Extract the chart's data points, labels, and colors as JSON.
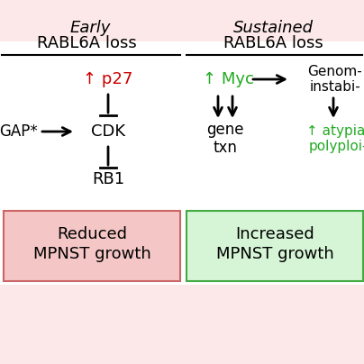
{
  "bg_color": "#fce8e8",
  "left_panel": {
    "title_line1": "Early",
    "title_line2": "RABL6A loss",
    "p27_color": "#cc0000",
    "outcome_text": "Reduced\nMPNST growth",
    "outcome_bg": "#f5c6c6",
    "outcome_border": "#cc6666"
  },
  "right_panel": {
    "title_line1": "Sustained",
    "title_line2": "RABL6A loss",
    "myc_color": "#22aa22",
    "atypia_color": "#22aa22",
    "outcome_text": "Increased\nMPNST growth",
    "outcome_bg": "#d6f5d6",
    "outcome_border": "#44aa44"
  }
}
